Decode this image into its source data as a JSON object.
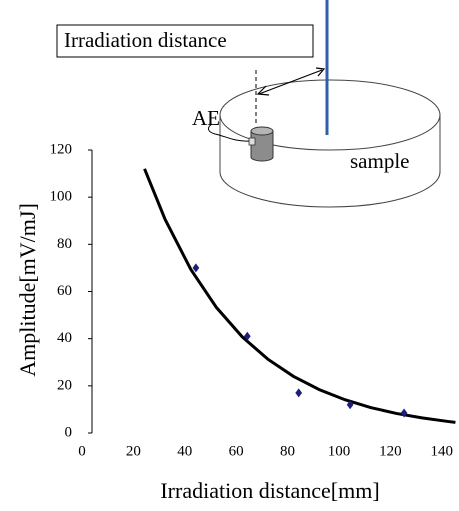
{
  "chart_data": {
    "type": "scatter",
    "x_label": "Irradiation distance[mm]",
    "y_label": "Amplitude[mV/mJ]",
    "x": [
      42,
      62,
      82,
      102,
      123
    ],
    "values": [
      70,
      41,
      17,
      12,
      8.5
    ],
    "color": "#1f1f7a",
    "marker": "diamond",
    "fit": {
      "x": [
        22,
        30,
        40,
        50,
        60,
        70,
        80,
        90,
        100,
        110,
        120,
        130,
        140,
        143
      ],
      "values": [
        112,
        90.6,
        69.4,
        53.2,
        40.8,
        31.3,
        24,
        18.4,
        14.1,
        10.8,
        8.3,
        6.4,
        4.9,
        4.5
      ],
      "color": "#000000"
    },
    "xlim": [
      0,
      144
    ],
    "ylim": [
      0,
      120
    ],
    "xticks": [
      0,
      20,
      40,
      60,
      80,
      100,
      120,
      140
    ],
    "yticks": [
      0,
      20,
      40,
      60,
      80,
      100,
      120
    ],
    "grid": false,
    "annotations": [
      "Irradiation distance",
      "AE",
      "sample"
    ]
  }
}
